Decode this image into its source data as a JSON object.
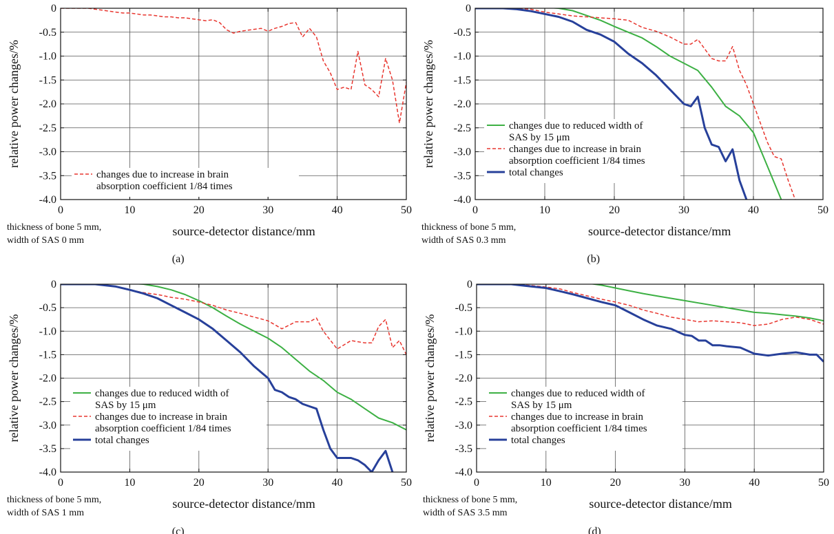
{
  "colors": {
    "reduced_width": "#3cb043",
    "brain_absorption": "#e8352e",
    "total": "#27409a",
    "grid": "#555555"
  },
  "chart_data": [
    {
      "type": "line",
      "panel_label": "(a)",
      "note": [
        "thickness of bone 5 mm,",
        "width of SAS 0 mm"
      ],
      "xlabel": "source-detector distance/mm",
      "ylabel": "relative power changes/%",
      "xlim": [
        0,
        50
      ],
      "ylim": [
        -4,
        0
      ],
      "grid": true,
      "legend_position": "bottom-left",
      "x_ticks": [
        "0",
        "10",
        "20",
        "30",
        "40",
        "50"
      ],
      "y_ticks": [
        "0",
        "-0.5",
        "-1.0",
        "-1.5",
        "-2.0",
        "-2.5",
        "-3.0",
        "-3.5",
        "-4.0"
      ],
      "series": [
        {
          "name": "changes due to increase in brain absorption coefficient 1/84 times",
          "legend_lines": [
            "changes due to increase in brain",
            "absorption coefficient 1/84 times"
          ],
          "color": "#e8352e",
          "dash": "5,3",
          "width": 1.5,
          "x": [
            0,
            2,
            4,
            5,
            6,
            7,
            8,
            9,
            10,
            11,
            12,
            13,
            14,
            15,
            16,
            17,
            18,
            19,
            20,
            21,
            22,
            23,
            24,
            25,
            26,
            27,
            28,
            29,
            30,
            31,
            32,
            33,
            34,
            35,
            36,
            37,
            38,
            39,
            40,
            41,
            42,
            43,
            44,
            45,
            46,
            47,
            48,
            49,
            50
          ],
          "y": [
            0,
            0,
            0,
            -0.02,
            -0.04,
            -0.06,
            -0.08,
            -0.1,
            -0.1,
            -0.12,
            -0.14,
            -0.14,
            -0.16,
            -0.18,
            -0.18,
            -0.2,
            -0.2,
            -0.22,
            -0.24,
            -0.26,
            -0.24,
            -0.3,
            -0.45,
            -0.52,
            -0.48,
            -0.46,
            -0.44,
            -0.42,
            -0.48,
            -0.42,
            -0.38,
            -0.32,
            -0.3,
            -0.6,
            -0.42,
            -0.6,
            -1.1,
            -1.35,
            -1.7,
            -1.65,
            -1.7,
            -0.9,
            -1.6,
            -1.7,
            -1.85,
            -1.05,
            -1.5,
            -2.4,
            -1.55
          ]
        }
      ]
    },
    {
      "type": "line",
      "panel_label": "(b)",
      "note": [
        "thickness of bone 5 mm,",
        "width of SAS 0.3 mm"
      ],
      "xlabel": "source-detector distance/mm",
      "ylabel": "relative power changes/%",
      "xlim": [
        0,
        50
      ],
      "ylim": [
        -4,
        0
      ],
      "grid": true,
      "legend_position": "middle-left",
      "x_ticks": [
        "0",
        "10",
        "20",
        "30",
        "40",
        "50"
      ],
      "y_ticks": [
        "0",
        "-0.5",
        "-1.0",
        "-1.5",
        "-2.0",
        "-2.5",
        "-3.0",
        "-3.5",
        "-4.0"
      ],
      "series": [
        {
          "name": "changes due to reduced width of SAS by 15 μm",
          "legend_lines": [
            "changes due to reduced width of",
            "SAS by 15 μm"
          ],
          "color": "#3cb043",
          "dash": "",
          "width": 2,
          "x": [
            0,
            4,
            6,
            8,
            10,
            12,
            14,
            16,
            18,
            20,
            22,
            24,
            26,
            28,
            30,
            32,
            34,
            36,
            38,
            40,
            42,
            44
          ],
          "y": [
            0,
            0,
            0,
            0.02,
            0.02,
            0,
            -0.05,
            -0.15,
            -0.25,
            -0.38,
            -0.5,
            -0.62,
            -0.8,
            -1.0,
            -1.15,
            -1.3,
            -1.65,
            -2.05,
            -2.25,
            -2.6,
            -3.3,
            -4.0
          ]
        },
        {
          "name": "changes due to increase in brain absorption coefficient 1/84 times",
          "legend_lines": [
            "changes due to increase in brain",
            "absorption coefficient 1/84 times"
          ],
          "color": "#e8352e",
          "dash": "5,3",
          "width": 1.5,
          "x": [
            0,
            4,
            6,
            8,
            10,
            12,
            14,
            16,
            18,
            20,
            22,
            24,
            26,
            28,
            30,
            31,
            32,
            33,
            34,
            35,
            36,
            37,
            38,
            39,
            40,
            42,
            43,
            44,
            45,
            46
          ],
          "y": [
            0,
            0,
            0,
            -0.02,
            -0.08,
            -0.12,
            -0.16,
            -0.18,
            -0.2,
            -0.22,
            -0.25,
            -0.4,
            -0.48,
            -0.6,
            -0.75,
            -0.75,
            -0.65,
            -0.85,
            -1.05,
            -1.1,
            -1.1,
            -0.8,
            -1.3,
            -1.6,
            -2.0,
            -2.8,
            -3.1,
            -3.15,
            -3.6,
            -4.0
          ]
        },
        {
          "name": "total changes",
          "legend_lines": [
            "total changes"
          ],
          "color": "#27409a",
          "dash": "",
          "width": 3,
          "x": [
            0,
            4,
            6,
            8,
            10,
            12,
            14,
            16,
            18,
            20,
            22,
            24,
            26,
            28,
            30,
            31,
            32,
            33,
            34,
            35,
            36,
            37,
            38,
            39
          ],
          "y": [
            0,
            0,
            -0.02,
            -0.06,
            -0.12,
            -0.18,
            -0.28,
            -0.45,
            -0.55,
            -0.7,
            -0.95,
            -1.15,
            -1.4,
            -1.7,
            -2.0,
            -2.05,
            -1.85,
            -2.5,
            -2.85,
            -2.9,
            -3.2,
            -2.95,
            -3.6,
            -4.0
          ]
        }
      ]
    },
    {
      "type": "line",
      "panel_label": "(c)",
      "note": [
        "thickness of bone 5 mm,",
        "width of SAS 1 mm"
      ],
      "xlabel": "source-detector distance/mm",
      "ylabel": "relative power changes/%",
      "xlim": [
        0,
        50
      ],
      "ylim": [
        -4,
        0
      ],
      "grid": true,
      "legend_position": "lower-left",
      "x_ticks": [
        "0",
        "10",
        "20",
        "30",
        "40",
        "50"
      ],
      "y_ticks": [
        "0",
        "-0.5",
        "-1.0",
        "-1.5",
        "-2.0",
        "-2.5",
        "-3.0",
        "-3.5",
        "-4.0"
      ],
      "series": [
        {
          "name": "changes due to reduced width of SAS by 15 μm",
          "legend_lines": [
            "changes due to reduced width of",
            "SAS by 15 μm"
          ],
          "color": "#3cb043",
          "dash": "",
          "width": 2,
          "x": [
            0,
            5,
            8,
            10,
            12,
            14,
            16,
            18,
            20,
            22,
            24,
            26,
            28,
            30,
            32,
            34,
            36,
            38,
            40,
            42,
            44,
            46,
            48,
            50
          ],
          "y": [
            0,
            0,
            0.02,
            0.02,
            0,
            -0.05,
            -0.12,
            -0.22,
            -0.35,
            -0.5,
            -0.68,
            -0.85,
            -1.0,
            -1.15,
            -1.35,
            -1.6,
            -1.85,
            -2.05,
            -2.3,
            -2.45,
            -2.65,
            -2.85,
            -2.95,
            -3.1
          ]
        },
        {
          "name": "changes due to increase in brain absorption coefficient 1/84 times",
          "legend_lines": [
            "changes due to increase in brain",
            "absorption coefficient 1/84 times"
          ],
          "color": "#e8352e",
          "dash": "5,3",
          "width": 1.5,
          "x": [
            0,
            5,
            8,
            10,
            12,
            14,
            16,
            18,
            20,
            22,
            24,
            26,
            28,
            30,
            32,
            34,
            36,
            37,
            38,
            40,
            42,
            44,
            45,
            46,
            47,
            48,
            49,
            50
          ],
          "y": [
            0,
            0,
            -0.05,
            -0.12,
            -0.18,
            -0.22,
            -0.28,
            -0.32,
            -0.38,
            -0.45,
            -0.55,
            -0.62,
            -0.7,
            -0.78,
            -0.95,
            -0.8,
            -0.8,
            -0.72,
            -1.0,
            -1.38,
            -1.2,
            -1.25,
            -1.25,
            -0.9,
            -0.75,
            -1.35,
            -1.2,
            -1.5
          ]
        },
        {
          "name": "total changes",
          "legend_lines": [
            "total changes"
          ],
          "color": "#27409a",
          "dash": "",
          "width": 3,
          "x": [
            0,
            5,
            8,
            10,
            12,
            14,
            16,
            18,
            20,
            22,
            24,
            26,
            28,
            30,
            31,
            32,
            33,
            34,
            35,
            36,
            37,
            38,
            39,
            40,
            41,
            42,
            43,
            44,
            45,
            46,
            47,
            48
          ],
          "y": [
            0,
            0,
            -0.05,
            -0.12,
            -0.2,
            -0.3,
            -0.45,
            -0.6,
            -0.75,
            -0.95,
            -1.2,
            -1.45,
            -1.75,
            -2.0,
            -2.25,
            -2.3,
            -2.4,
            -2.45,
            -2.55,
            -2.6,
            -2.65,
            -3.1,
            -3.5,
            -3.7,
            -3.7,
            -3.7,
            -3.75,
            -3.85,
            -4.0,
            -3.75,
            -3.55,
            -4.0
          ]
        }
      ]
    },
    {
      "type": "line",
      "panel_label": "(d)",
      "note": [
        "thickness of bone 5 mm,",
        "width of SAS 3.5 mm"
      ],
      "xlabel": "source-detector distance/mm",
      "ylabel": "relative power changes/%",
      "xlim": [
        0,
        50
      ],
      "ylim": [
        -4,
        0
      ],
      "grid": true,
      "legend_position": "lower-left",
      "x_ticks": [
        "0",
        "10",
        "20",
        "30",
        "40",
        "50"
      ],
      "y_ticks": [
        "0",
        "-0.5",
        "-1.0",
        "-1.5",
        "-2.0",
        "-2.5",
        "-3.0",
        "-3.5",
        "-4.0"
      ],
      "series": [
        {
          "name": "changes due to reduced width of SAS by 15 μm",
          "legend_lines": [
            "changes due to reduced width of",
            "SAS by 15 μm"
          ],
          "color": "#3cb043",
          "dash": "",
          "width": 2,
          "x": [
            0,
            5,
            10,
            12,
            14,
            16,
            18,
            20,
            22,
            24,
            26,
            28,
            30,
            32,
            34,
            36,
            38,
            40,
            42,
            44,
            46,
            48,
            50
          ],
          "y": [
            0,
            0,
            0.03,
            0.05,
            0.04,
            0.02,
            -0.02,
            -0.08,
            -0.14,
            -0.2,
            -0.25,
            -0.3,
            -0.35,
            -0.4,
            -0.45,
            -0.5,
            -0.55,
            -0.6,
            -0.62,
            -0.65,
            -0.68,
            -0.72,
            -0.78
          ]
        },
        {
          "name": "changes due to increase in brain absorption coefficient 1/84 times",
          "legend_lines": [
            "changes due to increase in brain",
            "absorption coefficient 1/84 times"
          ],
          "color": "#e8352e",
          "dash": "5,3",
          "width": 1.5,
          "x": [
            0,
            5,
            8,
            10,
            12,
            14,
            16,
            18,
            20,
            22,
            24,
            26,
            28,
            30,
            32,
            34,
            36,
            38,
            40,
            42,
            44,
            46,
            48,
            50
          ],
          "y": [
            0,
            0,
            -0.03,
            -0.06,
            -0.1,
            -0.18,
            -0.25,
            -0.32,
            -0.38,
            -0.45,
            -0.55,
            -0.62,
            -0.7,
            -0.75,
            -0.8,
            -0.78,
            -0.8,
            -0.82,
            -0.88,
            -0.85,
            -0.75,
            -0.7,
            -0.75,
            -0.85
          ]
        },
        {
          "name": "total changes",
          "legend_lines": [
            "total changes"
          ],
          "color": "#27409a",
          "dash": "",
          "width": 3,
          "x": [
            0,
            5,
            8,
            10,
            12,
            14,
            16,
            18,
            20,
            22,
            24,
            26,
            28,
            30,
            31,
            32,
            33,
            34,
            35,
            36,
            38,
            40,
            42,
            44,
            46,
            48,
            49,
            50
          ],
          "y": [
            0,
            0,
            -0.05,
            -0.08,
            -0.15,
            -0.22,
            -0.3,
            -0.38,
            -0.45,
            -0.6,
            -0.75,
            -0.88,
            -0.95,
            -1.08,
            -1.1,
            -1.2,
            -1.2,
            -1.3,
            -1.3,
            -1.32,
            -1.35,
            -1.48,
            -1.52,
            -1.48,
            -1.45,
            -1.5,
            -1.5,
            -1.65
          ]
        }
      ]
    }
  ]
}
